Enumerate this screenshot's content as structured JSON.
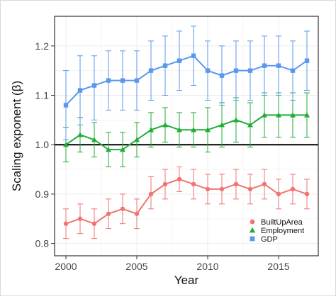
{
  "chart_data": {
    "type": "line",
    "xlabel": "Year",
    "ylabel": "Scaling exponent (β)",
    "xlim": [
      1999.2,
      2017.8
    ],
    "ylim": [
      0.775,
      1.26
    ],
    "x_ticks": [
      2000,
      2005,
      2010,
      2015
    ],
    "y_ticks": [
      0.8,
      0.9,
      1.0,
      1.1,
      1.2
    ],
    "x_tick_labels": [
      "2000",
      "2005",
      "2010",
      "2015"
    ],
    "y_tick_labels": [
      "0.8",
      "0.9",
      "1.0",
      "1.1",
      "1.2"
    ],
    "reference_line": 1.0,
    "grid": true,
    "legend_position": "bottom-right",
    "years": [
      2000,
      2001,
      2002,
      2003,
      2004,
      2005,
      2006,
      2007,
      2008,
      2009,
      2010,
      2011,
      2012,
      2013,
      2014,
      2015,
      2016,
      2017
    ],
    "series": [
      {
        "name": "BuiltUpArea",
        "color": "#f07470",
        "marker": "circle",
        "values": [
          0.84,
          0.85,
          0.84,
          0.86,
          0.87,
          0.86,
          0.9,
          0.92,
          0.93,
          0.92,
          0.91,
          0.91,
          0.92,
          0.91,
          0.92,
          0.9,
          0.91,
          0.9
        ],
        "lower": [
          0.81,
          0.82,
          0.81,
          0.83,
          0.84,
          0.83,
          0.87,
          0.89,
          0.905,
          0.89,
          0.88,
          0.88,
          0.89,
          0.88,
          0.89,
          0.87,
          0.88,
          0.87
        ],
        "upper": [
          0.87,
          0.88,
          0.87,
          0.89,
          0.9,
          0.89,
          0.935,
          0.95,
          0.955,
          0.95,
          0.94,
          0.94,
          0.95,
          0.94,
          0.95,
          0.93,
          0.94,
          0.93
        ]
      },
      {
        "name": "Employment",
        "color": "#22ad3a",
        "marker": "triangle",
        "values": [
          1.0,
          1.02,
          1.01,
          0.99,
          0.99,
          1.01,
          1.03,
          1.04,
          1.03,
          1.03,
          1.03,
          1.04,
          1.05,
          1.04,
          1.06,
          1.06,
          1.06,
          1.06
        ],
        "lower": [
          0.965,
          0.985,
          0.975,
          0.955,
          0.955,
          0.975,
          0.995,
          1.005,
          0.995,
          0.995,
          0.985,
          0.995,
          1.005,
          0.995,
          1.015,
          1.015,
          1.015,
          1.015
        ],
        "upper": [
          1.035,
          1.055,
          1.045,
          1.025,
          1.025,
          1.045,
          1.065,
          1.075,
          1.065,
          1.065,
          1.075,
          1.085,
          1.095,
          1.085,
          1.105,
          1.105,
          1.105,
          1.105
        ]
      },
      {
        "name": "GDP",
        "color": "#5b97ef",
        "marker": "square",
        "values": [
          1.08,
          1.11,
          1.12,
          1.13,
          1.13,
          1.13,
          1.15,
          1.16,
          1.17,
          1.18,
          1.15,
          1.14,
          1.15,
          1.15,
          1.16,
          1.16,
          1.15,
          1.17
        ],
        "lower": [
          1.01,
          1.04,
          1.05,
          1.07,
          1.07,
          1.07,
          1.09,
          1.1,
          1.11,
          1.12,
          1.09,
          1.08,
          1.09,
          1.09,
          1.1,
          1.1,
          1.09,
          1.11
        ],
        "upper": [
          1.15,
          1.18,
          1.18,
          1.19,
          1.19,
          1.19,
          1.21,
          1.22,
          1.23,
          1.24,
          1.21,
          1.2,
          1.21,
          1.21,
          1.22,
          1.22,
          1.21,
          1.23
        ]
      }
    ]
  }
}
